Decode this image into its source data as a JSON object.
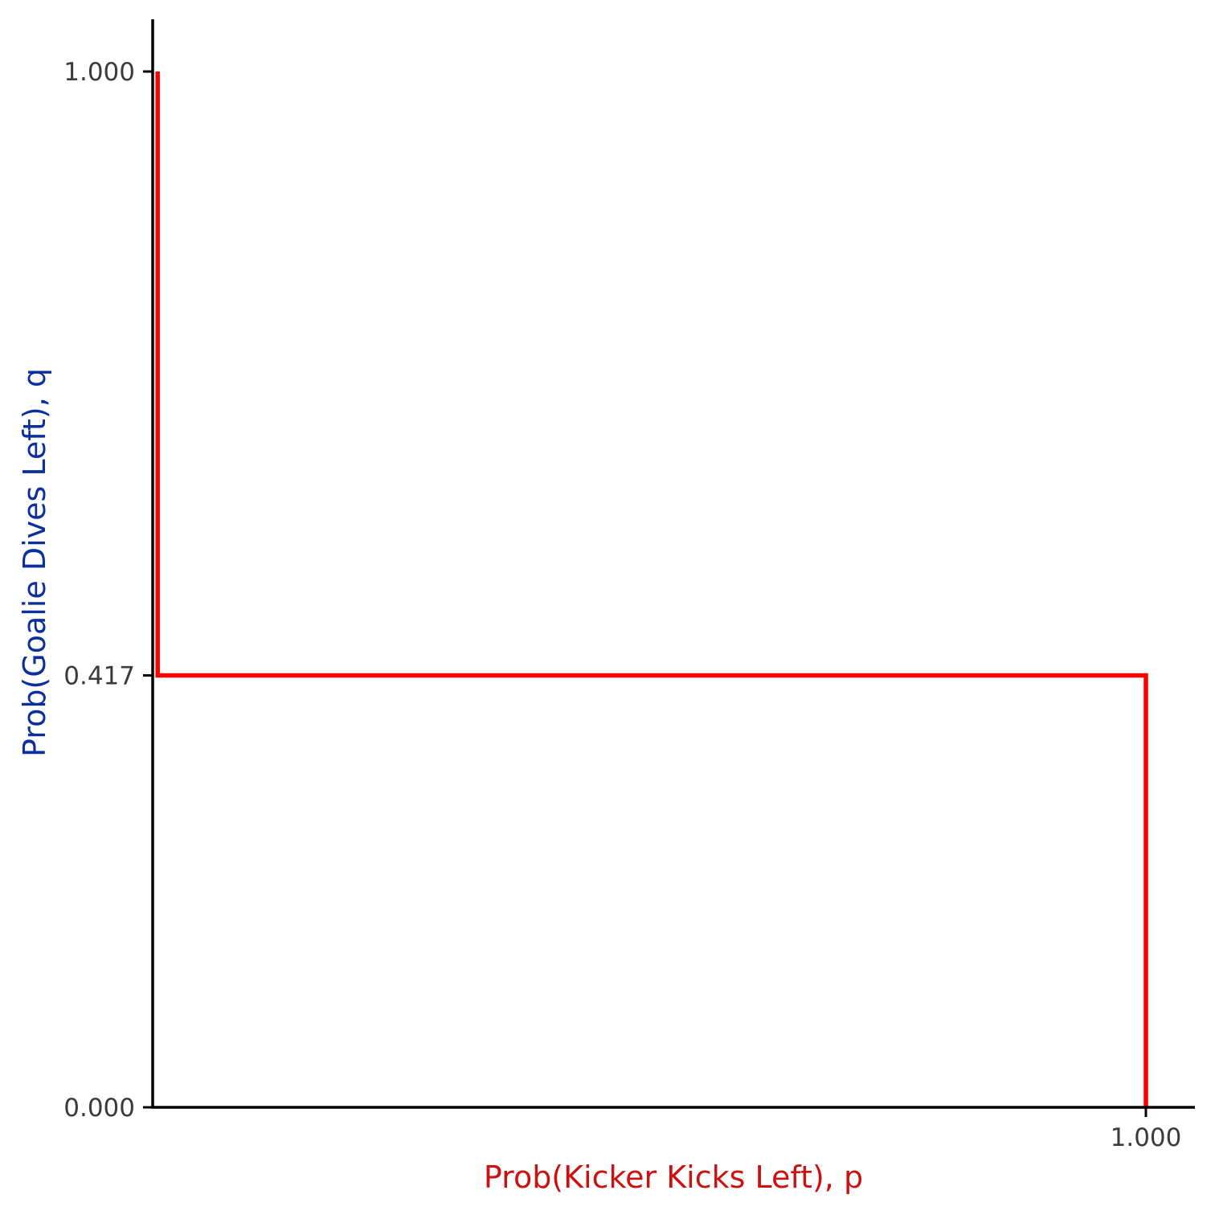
{
  "chart_data": {
    "type": "line",
    "title": "",
    "xlabel": "Prob(Kicker Kicks Left), p",
    "ylabel": "Prob(Goalie Dives Left), q",
    "xlim": [
      0,
      1.05
    ],
    "ylim": [
      0,
      1.05
    ],
    "x_ticks": [
      {
        "value": 1.0,
        "label": "1.000"
      }
    ],
    "y_ticks": [
      {
        "value": 0.0,
        "label": "0.000"
      },
      {
        "value": 0.417,
        "label": "0.417"
      },
      {
        "value": 1.0,
        "label": "1.000"
      }
    ],
    "grid": false,
    "legend": "none",
    "series": [
      {
        "color": "#ff0000",
        "x": [
          0.005,
          0.005,
          1.0,
          1.0
        ],
        "y": [
          1.0,
          0.417,
          0.417,
          0.0
        ]
      }
    ],
    "colors": {
      "xlabel": "#cc1111",
      "ylabel": "#0b2f9c",
      "axis": "#000000",
      "tick_label": "#3b3b3b"
    }
  }
}
